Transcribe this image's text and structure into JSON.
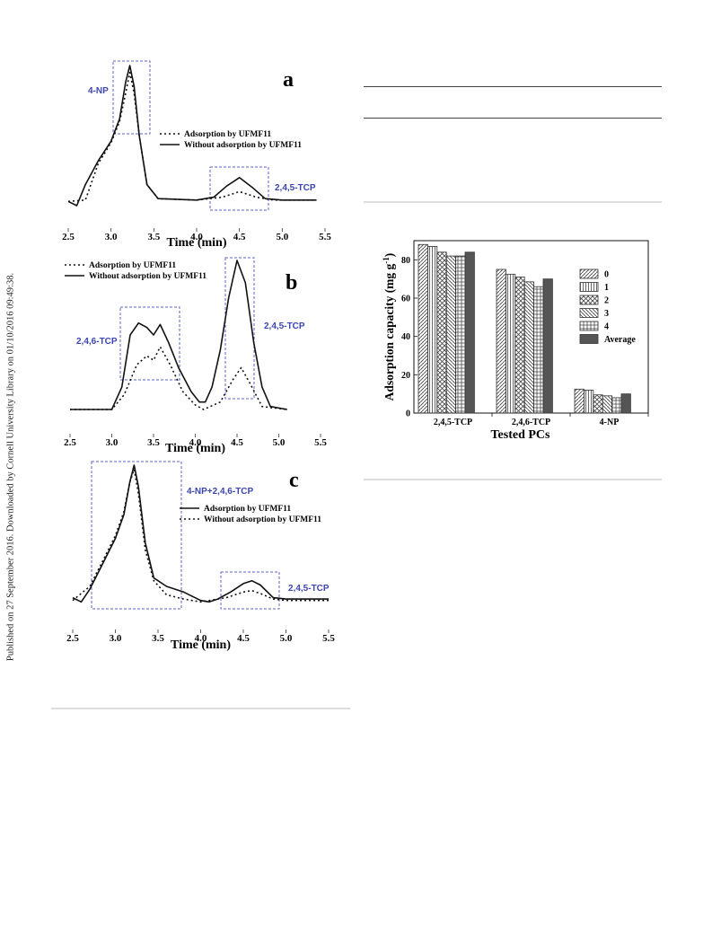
{
  "side_note": "Published on 27 September 2016. Downloaded by Cornell University Library on 01/10/2016 09:49:38.",
  "chart_data": [
    {
      "type": "line",
      "panel": "a",
      "xlabel": "Time (min)",
      "xlim": [
        2.5,
        5.5
      ],
      "xticks": [
        "2.5",
        "3.0",
        "3.5",
        "4.0",
        "4.5",
        "5.0",
        "5.5"
      ],
      "legend": [
        "Adsorption by UFMF11",
        "Without adsorption by UFMF11"
      ],
      "annotations": [
        "4-NP",
        "2,4,5-TCP"
      ],
      "series": [
        {
          "name": "Adsorption by UFMF11",
          "style": "dotted",
          "x": [
            2.5,
            2.7,
            2.85,
            3.0,
            3.1,
            3.17,
            3.22,
            3.27,
            3.33,
            3.42,
            3.55,
            4.0,
            4.3,
            4.5,
            4.7,
            4.9,
            5.4
          ],
          "y": [
            0.03,
            0.04,
            0.3,
            0.45,
            0.6,
            0.8,
            0.95,
            0.8,
            0.5,
            0.15,
            0.05,
            0.04,
            0.06,
            0.1,
            0.06,
            0.04,
            0.04
          ]
        },
        {
          "name": "Without adsorption by UFMF11",
          "style": "solid",
          "x": [
            2.5,
            2.6,
            2.7,
            2.85,
            3.0,
            3.1,
            3.17,
            3.22,
            3.27,
            3.33,
            3.42,
            3.55,
            4.0,
            4.2,
            4.35,
            4.5,
            4.65,
            4.8,
            5.0,
            5.4
          ],
          "y": [
            0.03,
            0.0,
            0.15,
            0.32,
            0.46,
            0.62,
            0.88,
            1.0,
            0.85,
            0.5,
            0.15,
            0.05,
            0.04,
            0.06,
            0.14,
            0.2,
            0.13,
            0.05,
            0.04,
            0.04
          ]
        }
      ]
    },
    {
      "type": "line",
      "panel": "b",
      "xlabel": "Time (min)",
      "xlim": [
        2.5,
        5.5
      ],
      "xticks": [
        "2.5",
        "3.0",
        "3.5",
        "4.0",
        "4.5",
        "5.0",
        "5.5"
      ],
      "legend": [
        "Adsorption by UFMF11",
        "Without adsorption by UFMF11"
      ],
      "annotations": [
        "2,4,6-TCP",
        "2,4,5-TCP"
      ],
      "series": [
        {
          "name": "Adsorption by UFMF11",
          "style": "dotted",
          "x": [
            2.5,
            3.0,
            3.15,
            3.3,
            3.42,
            3.5,
            3.58,
            3.7,
            3.85,
            4.0,
            4.1,
            4.3,
            4.45,
            4.55,
            4.65,
            4.8,
            5.1
          ],
          "y": [
            0.0,
            0.0,
            0.1,
            0.3,
            0.36,
            0.33,
            0.42,
            0.3,
            0.12,
            0.03,
            0.0,
            0.05,
            0.2,
            0.28,
            0.18,
            0.02,
            0.0
          ]
        },
        {
          "name": "Without adsorption by UFMF11",
          "style": "solid",
          "x": [
            2.5,
            3.0,
            3.12,
            3.22,
            3.32,
            3.42,
            3.5,
            3.58,
            3.68,
            3.8,
            3.95,
            4.05,
            4.12,
            4.2,
            4.3,
            4.4,
            4.5,
            4.6,
            4.7,
            4.8,
            4.9,
            5.1
          ],
          "y": [
            0.0,
            0.0,
            0.15,
            0.5,
            0.58,
            0.55,
            0.5,
            0.57,
            0.45,
            0.28,
            0.12,
            0.05,
            0.05,
            0.15,
            0.4,
            0.75,
            1.0,
            0.85,
            0.45,
            0.15,
            0.02,
            0.0
          ]
        }
      ]
    },
    {
      "type": "line",
      "panel": "c",
      "xlabel": "Time (min)",
      "xlim": [
        2.5,
        5.5
      ],
      "xticks": [
        "2.5",
        "3.0",
        "3.5",
        "4.0",
        "4.5",
        "5.0",
        "5.5"
      ],
      "legend": [
        "Adsorption by UFMF11",
        "Without adsorption by UFMF11"
      ],
      "annotations": [
        "4-NP+2,4,6-TCP",
        "2,4,5-TCP"
      ],
      "series": [
        {
          "name": "Adsorption by UFMF11",
          "style": "solid",
          "x": [
            2.5,
            2.6,
            2.7,
            2.85,
            3.0,
            3.1,
            3.17,
            3.22,
            3.27,
            3.35,
            3.45,
            3.6,
            3.8,
            4.0,
            4.1,
            4.2,
            4.35,
            4.5,
            4.6,
            4.7,
            4.85,
            5.0,
            5.5
          ],
          "y": [
            0.06,
            0.03,
            0.12,
            0.3,
            0.48,
            0.65,
            0.88,
            1.0,
            0.85,
            0.45,
            0.2,
            0.14,
            0.1,
            0.04,
            0.03,
            0.05,
            0.1,
            0.16,
            0.18,
            0.15,
            0.06,
            0.05,
            0.05
          ]
        },
        {
          "name": "Without adsorption by UFMF11",
          "style": "dotted",
          "x": [
            2.5,
            2.7,
            2.85,
            3.0,
            3.1,
            3.17,
            3.22,
            3.27,
            3.35,
            3.45,
            3.6,
            3.8,
            4.0,
            4.3,
            4.5,
            4.6,
            4.7,
            4.85,
            5.0,
            5.5
          ],
          "y": [
            0.04,
            0.14,
            0.32,
            0.5,
            0.67,
            0.88,
            0.97,
            0.8,
            0.4,
            0.18,
            0.08,
            0.05,
            0.03,
            0.06,
            0.1,
            0.11,
            0.09,
            0.05,
            0.04,
            0.04
          ]
        }
      ]
    },
    {
      "type": "bar",
      "panel": "bar",
      "categories": [
        "2,4,5-TCP",
        "2,4,6-TCP",
        "4-NP"
      ],
      "xlabel": "Tested PCs",
      "ylabel": "Adsorption capacity (mg g",
      "ylabel_sup": "-1",
      "ylabel_close": ")",
      "ylim": [
        0,
        90
      ],
      "yticks": [
        "0",
        "20",
        "40",
        "60",
        "80"
      ],
      "legend_placement": "right",
      "series": [
        {
          "name": "0",
          "values": [
            88,
            75,
            12.5
          ],
          "pattern": "diag-right"
        },
        {
          "name": "1",
          "values": [
            87,
            72.5,
            12
          ],
          "pattern": "vertical"
        },
        {
          "name": "2",
          "values": [
            84,
            71,
            9.5
          ],
          "pattern": "crosshatch"
        },
        {
          "name": "3",
          "values": [
            82,
            68.5,
            9
          ],
          "pattern": "diag-left"
        },
        {
          "name": "4",
          "values": [
            82,
            66,
            8
          ],
          "pattern": "grid"
        },
        {
          "name": "Average",
          "values": [
            84,
            70,
            10
          ],
          "pattern": "solid"
        }
      ]
    }
  ]
}
